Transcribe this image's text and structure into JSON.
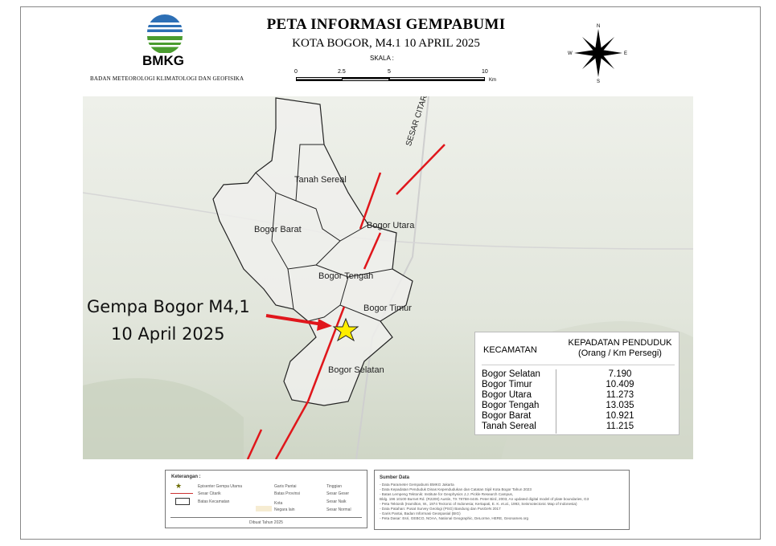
{
  "header": {
    "title": "PETA INFORMASI GEMPABUMI",
    "subtitle": "KOTA BOGOR, M4.1 10 APRIL 2025",
    "scale_label": "SKALA :",
    "scale_ticks": [
      "0",
      "2.5",
      "5",
      "10"
    ],
    "scale_unit": "Km",
    "logo_text": "BMKG",
    "agency": "BADAN METEOROLOGI KLIMATOLOGI DAN GEOFISIKA",
    "compass": {
      "n": "N",
      "s": "S",
      "e": "E",
      "w": "W"
    }
  },
  "map": {
    "districts": [
      "Tanah Sereal",
      "Bogor Barat",
      "Bogor Utara",
      "Bogor Tengah",
      "Bogor Timur",
      "Bogor Selatan"
    ],
    "fault_label": "SESAR CITARIK",
    "quake_label_line1": "Gempa Bogor M4,1",
    "quake_label_line2": "10 April 2025",
    "fault_color": "#e0161b",
    "epicenter_color": "#ffee00"
  },
  "table": {
    "col1": "KECAMATAN",
    "col2_line1": "KEPADATAN PENDUDUK",
    "col2_line2": "(Orang / Km Persegi)",
    "rows": [
      {
        "name": "Bogor Selatan",
        "value": "7.190"
      },
      {
        "name": "Bogor Timur",
        "value": "10.409"
      },
      {
        "name": "Bogor Utara",
        "value": "11.273"
      },
      {
        "name": "Bogor Tengah",
        "value": "13.035"
      },
      {
        "name": "Bogor Barat",
        "value": "10.921"
      },
      {
        "name": "Tanah Sereal",
        "value": "11.215"
      }
    ]
  },
  "legend": {
    "title": "Keterangan :",
    "items": [
      "Episenter Gempa Utama",
      "Sesar Citarik",
      "Batas Kecamatan",
      "Garis Pantai",
      "Batas Provinsi",
      "Kota",
      "Negara lain",
      "Tinggian",
      "Sesar Geser",
      "Sesar Naik",
      "Sesar Normal"
    ],
    "footer": "Dibuat Tahun 2025"
  },
  "sources": {
    "title": "Sumber Data",
    "lines": [
      "- Data Parameter Gempabumi BMKG Jakarta",
      "- Data Kepadatan Penduduk Dinas Kependudukan dan Catatan Sipil Kota Bogor Tahun 2023",
      "- Batas Lempeng Tektonik: Institute for Geophysics J.J. Pickle Research Campus,",
      "  Bldg. 196 10100 Burnet Rd. (R2200) Austin, TX 78758-4445. Peter Bird, 2003, An updated digital model of plate boundaries, G3",
      "- Peta Tektonik (Hamilton, W., 1974 Tectonic of Indonesia; Kertapati, E. K. et.al., 1993, Seismotectonic Map of Indonesia)",
      "- Data Patahan: Pusat Survey Geologi (PSG) Bandung dan PusGeN 2017",
      "- Garis Pantai, Badan Informasi Geospasial (BIG)",
      "- Peta Dasar: Esri, GEBCO, NOAA, National Geographic, DeLorme, HERE, Geonames.org"
    ]
  }
}
